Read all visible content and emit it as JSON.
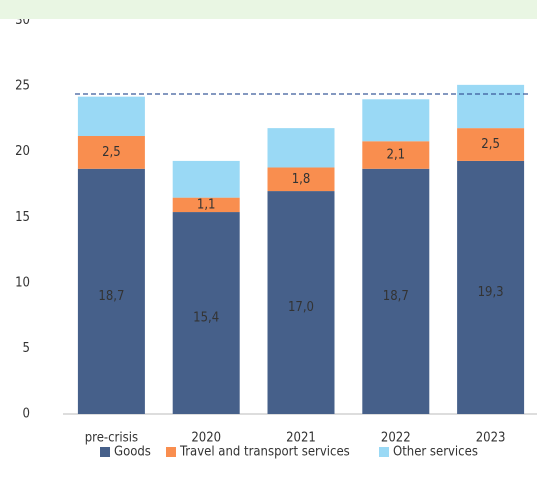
{
  "chart_data": {
    "type": "stacked_bar",
    "categories": [
      "pre-crisis",
      "2020",
      "2021",
      "2022",
      "2023"
    ],
    "series": [
      {
        "name": "Goods",
        "color": "#46608a",
        "values": [
          18.7,
          15.4,
          17.0,
          18.7,
          19.3
        ],
        "value_labels": [
          "18,7",
          "15,4",
          "17,0",
          "18,7",
          "19,3"
        ]
      },
      {
        "name": "Travel and transport services",
        "color": "#f98e4f",
        "values": [
          2.5,
          1.1,
          1.8,
          2.1,
          2.5
        ],
        "value_labels": [
          "2,5",
          "1,1",
          "1,8",
          "2,1",
          "2,5"
        ]
      },
      {
        "name": "Other services",
        "color": "#9ad9f5",
        "values": [
          3.0,
          2.8,
          3.0,
          3.2,
          3.3
        ]
      }
    ],
    "reference_line": {
      "value": 24.4,
      "color": "#3a5a9a"
    },
    "ylim": [
      0,
      30
    ],
    "yticks": [
      0,
      5,
      10,
      15,
      20,
      25,
      30
    ],
    "grid": false,
    "legend": "bottom"
  }
}
